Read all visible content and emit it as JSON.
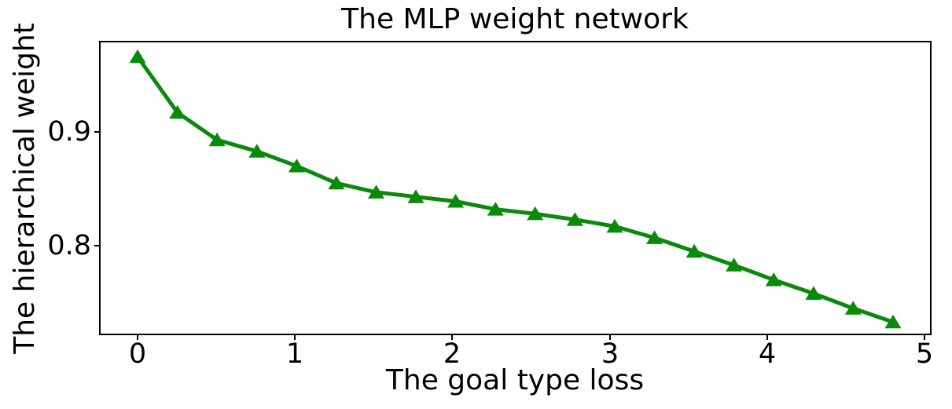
{
  "figure": {
    "background_color": "#ffffff",
    "text_color": "#000000"
  },
  "chart_data": {
    "type": "line",
    "title": "The MLP weight network",
    "xlabel": "The goal type loss",
    "ylabel": "The hierarchical weight",
    "grid": false,
    "legend_position": "none",
    "xlim": [
      -0.235,
      5.035
    ],
    "ylim": [
      0.7228,
      0.9786
    ],
    "xticks": {
      "values": [
        0,
        1,
        2,
        3,
        4,
        5
      ],
      "labels": [
        "0",
        "1",
        "2",
        "3",
        "4",
        "5"
      ]
    },
    "yticks": {
      "values": [
        0.8,
        0.9
      ],
      "labels": [
        "0.8",
        "0.9"
      ]
    },
    "series": [
      {
        "color": "#0a8a0a",
        "marker": "triangle-up",
        "line_width": 5,
        "x": [
          0.0,
          0.253,
          0.505,
          0.758,
          1.011,
          1.263,
          1.516,
          1.768,
          2.021,
          2.274,
          2.526,
          2.779,
          3.032,
          3.284,
          3.537,
          3.789,
          4.042,
          4.295,
          4.547,
          4.8
        ],
        "y": [
          0.966,
          0.917,
          0.893,
          0.883,
          0.87,
          0.855,
          0.847,
          0.843,
          0.839,
          0.832,
          0.828,
          0.823,
          0.817,
          0.807,
          0.795,
          0.783,
          0.77,
          0.758,
          0.745,
          0.733
        ]
      }
    ]
  }
}
